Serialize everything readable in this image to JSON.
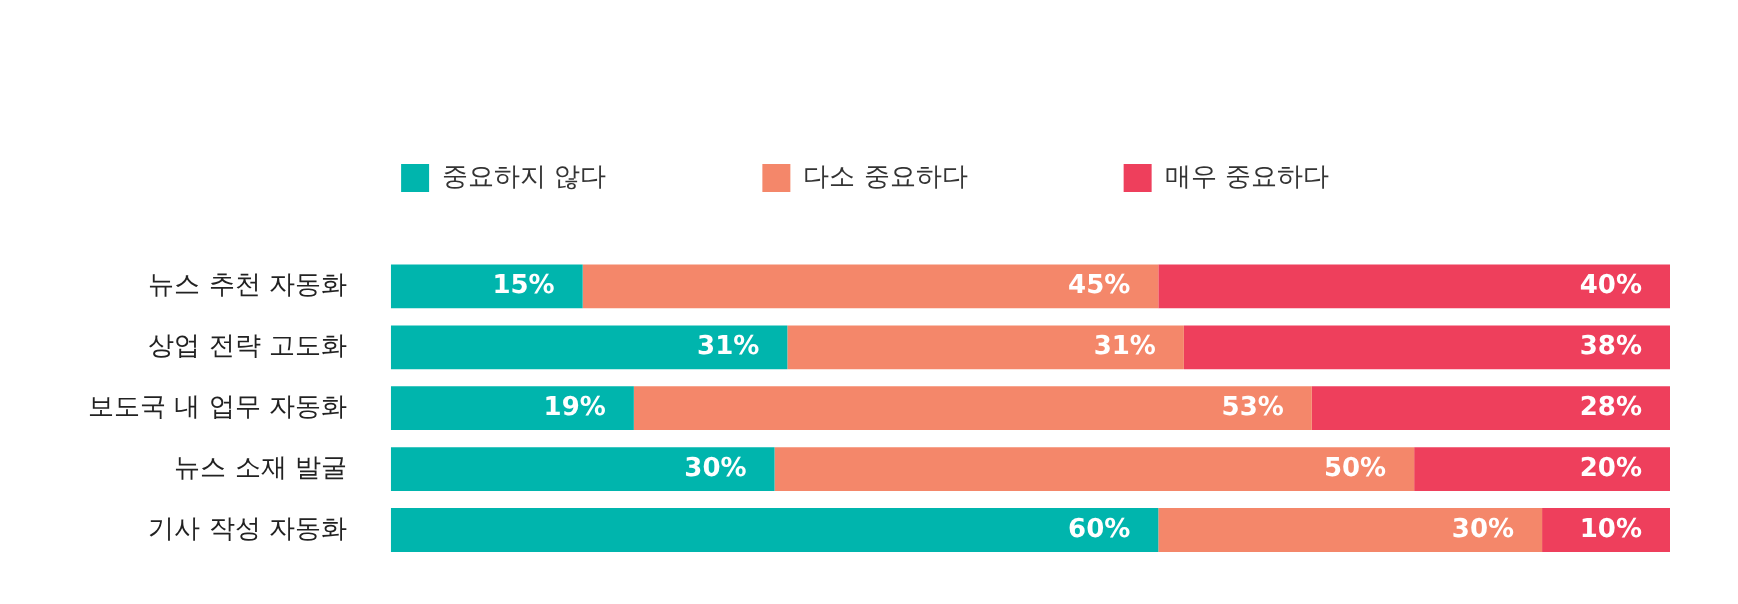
{
  "chart_data": {
    "type": "bar",
    "orientation": "horizontal",
    "stacked": true,
    "categories": [
      "뉴스 추천 자동화",
      "상업 전략 고도화",
      "보도국 내 업무 자동화",
      "뉴스 소재 발굴",
      "기사 작성 자동화"
    ],
    "xlim": [
      0,
      100
    ],
    "legend": "top",
    "tick_labels": "y",
    "grid": false,
    "series": [
      {
        "name": "중요하지 않다",
        "color": "#00b5ad",
        "values": [
          15,
          31,
          19,
          30,
          60
        ],
        "value_labels": [
          "15%",
          "31%",
          "19%",
          "30%",
          "60%"
        ]
      },
      {
        "name": "다소 중요하다",
        "color": "#f4876a",
        "values": [
          45,
          31,
          53,
          50,
          30
        ],
        "value_labels": [
          "45%",
          "31%",
          "53%",
          "50%",
          "30%"
        ]
      },
      {
        "name": "매우 중요하다",
        "color": "#ee3f5c",
        "values": [
          40,
          38,
          28,
          20,
          10
        ],
        "value_labels": [
          "40%",
          "38%",
          "28%",
          "20%",
          "10%"
        ]
      }
    ]
  }
}
